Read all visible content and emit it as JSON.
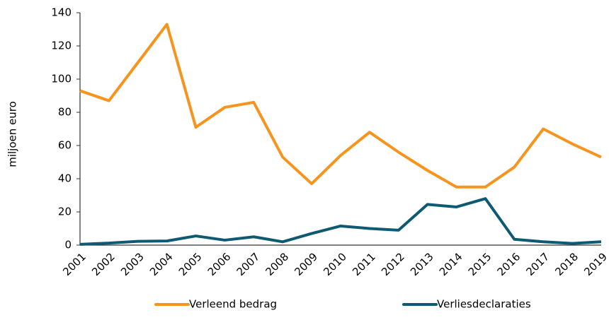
{
  "chart_data": {
    "type": "line",
    "y_label": "miljoen euro",
    "categories": [
      "2001",
      "2002",
      "2003",
      "2004",
      "2005",
      "2006",
      "2007",
      "2008",
      "2009",
      "2010",
      "2011",
      "2012",
      "2013",
      "2014",
      "2015",
      "2016",
      "2017",
      "2018",
      "2019"
    ],
    "series": [
      {
        "name": "Verleend bedrag",
        "color": "#f7941d",
        "values": [
          93,
          87,
          110,
          133,
          71,
          83,
          86,
          53,
          37,
          54,
          68,
          56,
          45,
          35,
          35,
          47,
          70,
          61,
          53
        ]
      },
      {
        "name": "Verliesdeclaraties",
        "color": "#0e5a73",
        "values": [
          0.5,
          1.2,
          2.3,
          2.5,
          5.5,
          3,
          5,
          2,
          7,
          11.5,
          10,
          9,
          24.5,
          23,
          28,
          3.5,
          2,
          1,
          2
        ]
      }
    ],
    "ylim": [
      0,
      140
    ],
    "yticks": [
      0,
      20,
      40,
      60,
      80,
      100,
      120,
      140
    ],
    "grid": false,
    "legend": "bottom"
  }
}
